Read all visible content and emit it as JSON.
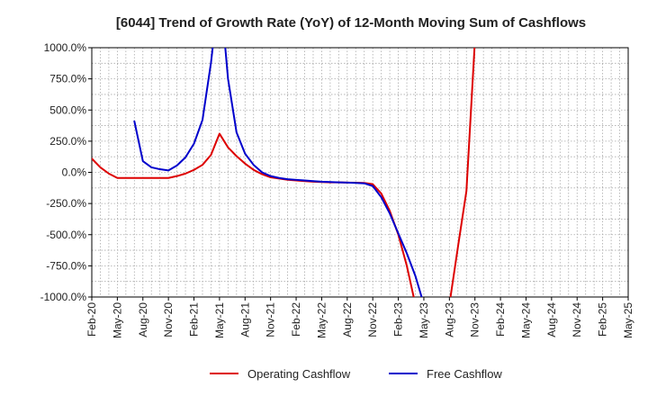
{
  "chart_data": {
    "type": "line",
    "title": "[6044]  Trend of Growth Rate (YoY) of 12-Month Moving Sum of Cashflows",
    "xlabel": "",
    "ylabel": "",
    "ylim": [
      -1000,
      1000
    ],
    "y_ticks": [
      "1000.0%",
      "750.0%",
      "500.0%",
      "250.0%",
      "0.0%",
      "-250.0%",
      "-500.0%",
      "-750.0%",
      "-1000.0%"
    ],
    "y_tick_values": [
      1000,
      750,
      500,
      250,
      0,
      -250,
      -500,
      -750,
      -1000
    ],
    "x_tick_labels": [
      "Feb-20",
      "May-20",
      "Aug-20",
      "Nov-20",
      "Feb-21",
      "May-21",
      "Aug-21",
      "Nov-21",
      "Feb-22",
      "May-22",
      "Aug-22",
      "Nov-22",
      "Feb-23",
      "May-23",
      "Aug-23",
      "Nov-23",
      "Feb-24",
      "May-24",
      "Aug-24",
      "Nov-24",
      "Feb-25",
      "May-25"
    ],
    "x_range": [
      "2020-02",
      "2025-05"
    ],
    "grid": true,
    "legend_position": "bottom",
    "colors": {
      "operating": "#dd0000",
      "free": "#0000cc",
      "grid": "#aaaaaa",
      "axis": "#000000"
    },
    "series": [
      {
        "name": "Operating Cashflow",
        "color": "#dd0000",
        "points": [
          [
            "2020-02",
            110
          ],
          [
            "2020-03",
            40
          ],
          [
            "2020-04",
            -10
          ],
          [
            "2020-05",
            -45
          ],
          [
            "2020-06",
            -45
          ],
          [
            "2020-07",
            -45
          ],
          [
            "2020-08",
            -45
          ],
          [
            "2020-09",
            -45
          ],
          [
            "2020-10",
            -45
          ],
          [
            "2020-11",
            -45
          ],
          [
            "2020-12",
            -30
          ],
          [
            "2021-01",
            -10
          ],
          [
            "2021-02",
            20
          ],
          [
            "2021-03",
            60
          ],
          [
            "2021-04",
            140
          ],
          [
            "2021-05",
            310
          ],
          [
            "2021-06",
            200
          ],
          [
            "2021-07",
            130
          ],
          [
            "2021-08",
            70
          ],
          [
            "2021-09",
            20
          ],
          [
            "2021-10",
            -15
          ],
          [
            "2021-11",
            -40
          ],
          [
            "2021-12",
            -50
          ],
          [
            "2022-01",
            -60
          ],
          [
            "2022-02",
            -65
          ],
          [
            "2022-03",
            -70
          ],
          [
            "2022-04",
            -75
          ],
          [
            "2022-05",
            -78
          ],
          [
            "2022-06",
            -80
          ],
          [
            "2022-07",
            -80
          ],
          [
            "2022-08",
            -82
          ],
          [
            "2022-09",
            -83
          ],
          [
            "2022-10",
            -85
          ],
          [
            "2022-11",
            -95
          ],
          [
            "2022-12",
            -170
          ],
          [
            "2023-01",
            -310
          ],
          [
            "2023-02",
            -500
          ],
          [
            "2023-03",
            -750
          ],
          [
            "2023-04",
            -1060
          ]
        ]
      },
      {
        "name": "Operating Cashflow (continued)",
        "color": "#dd0000",
        "points": [
          [
            "2023-08",
            -1060
          ],
          [
            "2023-09",
            -600
          ],
          [
            "2023-10",
            -150
          ],
          [
            "2023-11",
            1060
          ]
        ]
      },
      {
        "name": "Free Cashflow",
        "color": "#0000cc",
        "points": [
          [
            "2020-07",
            410
          ],
          [
            "2020-08",
            90
          ],
          [
            "2020-09",
            40
          ],
          [
            "2020-10",
            25
          ],
          [
            "2020-11",
            15
          ],
          [
            "2020-12",
            55
          ],
          [
            "2021-01",
            120
          ],
          [
            "2021-02",
            230
          ],
          [
            "2021-03",
            420
          ],
          [
            "2021-04",
            880
          ],
          [
            "2021-04.3",
            1060
          ]
        ]
      },
      {
        "name": "Free Cashflow (continued)",
        "color": "#0000cc",
        "points": [
          [
            "2021-05.6",
            1060
          ],
          [
            "2021-06",
            750
          ],
          [
            "2021-07",
            320
          ],
          [
            "2021-08",
            150
          ],
          [
            "2021-09",
            60
          ],
          [
            "2021-10",
            0
          ],
          [
            "2021-11",
            -30
          ],
          [
            "2021-12",
            -45
          ],
          [
            "2022-01",
            -55
          ],
          [
            "2022-02",
            -60
          ],
          [
            "2022-03",
            -65
          ],
          [
            "2022-04",
            -70
          ],
          [
            "2022-05",
            -75
          ],
          [
            "2022-06",
            -78
          ],
          [
            "2022-07",
            -80
          ],
          [
            "2022-08",
            -82
          ],
          [
            "2022-09",
            -85
          ],
          [
            "2022-10",
            -88
          ],
          [
            "2022-11",
            -110
          ],
          [
            "2022-12",
            -200
          ],
          [
            "2023-01",
            -330
          ],
          [
            "2023-02",
            -490
          ],
          [
            "2023-03",
            -650
          ],
          [
            "2023-04",
            -830
          ],
          [
            "2023-05",
            -1060
          ]
        ]
      }
    ],
    "legend": [
      {
        "label": "Operating Cashflow",
        "color": "#dd0000"
      },
      {
        "label": "Free Cashflow",
        "color": "#0000cc"
      }
    ]
  }
}
